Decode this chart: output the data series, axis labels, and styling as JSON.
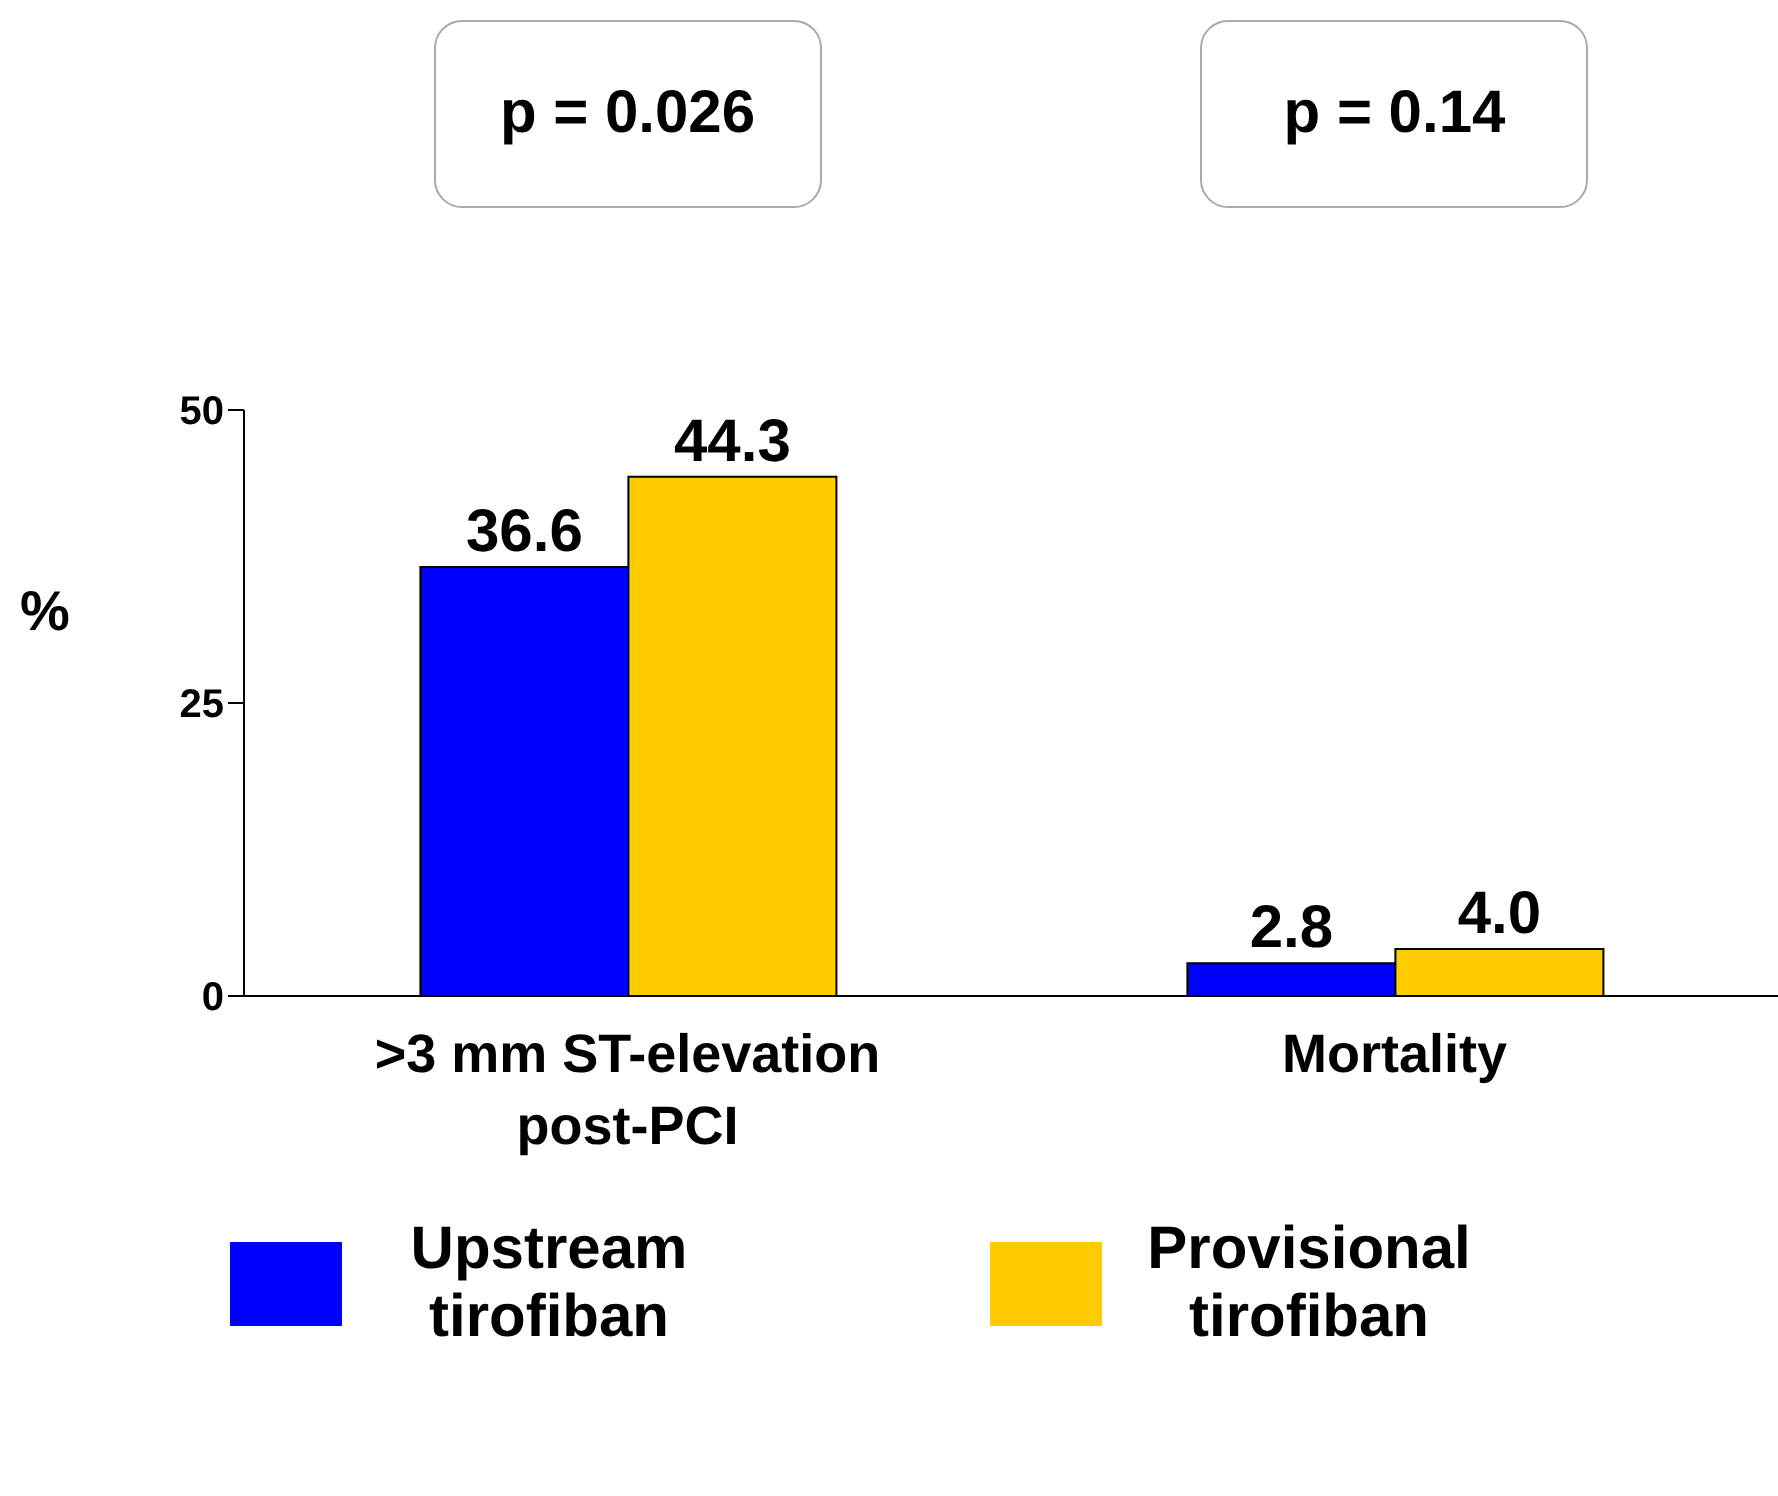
{
  "chart_data": {
    "type": "bar",
    "categories": [
      ">3 mm ST-elevation post-PCI",
      "Mortality"
    ],
    "series": [
      {
        "name": "Upstream tirofiban",
        "color": "#0000ff",
        "values": [
          36.6,
          2.8
        ],
        "value_labels": [
          "36.6",
          "2.8"
        ]
      },
      {
        "name": "Provisional tirofiban",
        "color": "#ffcc00",
        "values": [
          44.3,
          4.0
        ],
        "value_labels": [
          "44.3",
          "4.0"
        ]
      }
    ],
    "ylabel": "%",
    "ylim": [
      0,
      50
    ],
    "yticks": [
      0,
      25,
      50
    ],
    "legend": "bottom",
    "annotations": [
      "p = 0.026",
      "p = 0.14"
    ]
  }
}
